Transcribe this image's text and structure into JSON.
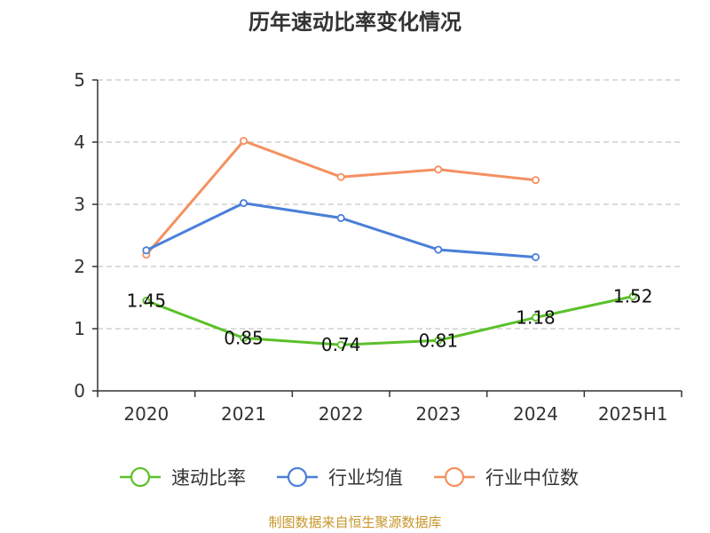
{
  "chart_data": {
    "type": "line",
    "title": "历年速动比率变化情况",
    "xlabel": "",
    "ylabel": "",
    "categories": [
      "2020",
      "2021",
      "2022",
      "2023",
      "2024",
      "2025H1"
    ],
    "ylim": [
      0,
      5
    ],
    "yticks": [
      "0",
      "1",
      "2",
      "3",
      "4",
      "5"
    ],
    "grid": true,
    "legend_position": "bottom",
    "series": [
      {
        "name": "速动比率",
        "color": "#5cc02a",
        "values": [
          1.45,
          0.85,
          0.74,
          0.81,
          1.18,
          1.52
        ],
        "labels": [
          "1.45",
          "0.85",
          "0.74",
          "0.81",
          "1.18",
          "1.52"
        ]
      },
      {
        "name": "行业均值",
        "color": "#4a7fd8",
        "values": [
          2.26,
          3.02,
          2.78,
          2.27,
          2.15,
          null
        ],
        "labels": []
      },
      {
        "name": "行业中位数",
        "color": "#f59060",
        "values": [
          2.19,
          4.02,
          3.44,
          3.56,
          3.39,
          null
        ],
        "labels": []
      }
    ]
  },
  "source": "制图数据来自恒生聚源数据库"
}
